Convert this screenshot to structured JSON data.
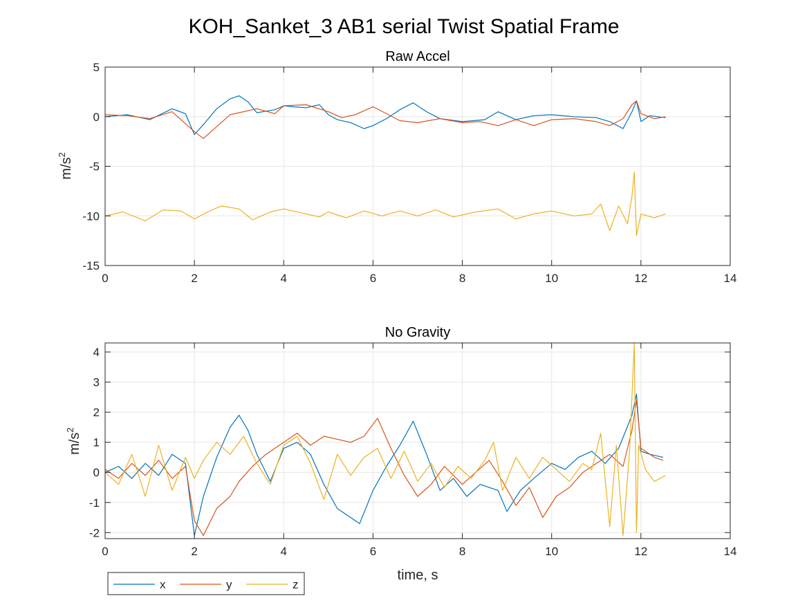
{
  "figure": {
    "title": "KOH_Sanket_3 AB1 serial Twist Spatial Frame",
    "legend": {
      "placement": "bottom-left, horizontal",
      "entries": [
        "x",
        "y",
        "z"
      ]
    }
  },
  "colors": {
    "x": "#0072BD",
    "y": "#D95319",
    "z": "#EDB120",
    "grid": "#e6e6e6",
    "axis": "#262626"
  },
  "chart_data": [
    {
      "type": "line",
      "title": "Raw Accel",
      "xlabel": "",
      "ylabel": "m/s",
      "ylabel_sup": "2",
      "xlim": [
        0,
        14
      ],
      "ylim": [
        -15,
        5
      ],
      "xticks": [
        0,
        2,
        4,
        6,
        8,
        10,
        12,
        14
      ],
      "yticks": [
        -15,
        -10,
        -5,
        0,
        5
      ],
      "grid": true,
      "series": [
        {
          "name": "x",
          "x": [
            0,
            0.5,
            1,
            1.5,
            1.8,
            2.0,
            2.2,
            2.5,
            2.8,
            3.0,
            3.2,
            3.4,
            3.8,
            4.0,
            4.2,
            4.5,
            4.8,
            5.0,
            5.2,
            5.5,
            5.8,
            6.0,
            6.3,
            6.6,
            6.9,
            7.2,
            7.5,
            8.0,
            8.5,
            8.8,
            9.2,
            9.6,
            10.0,
            10.5,
            11.0,
            11.3,
            11.6,
            11.8,
            11.9,
            12.0,
            12.2,
            12.55
          ],
          "y": [
            0,
            0.2,
            -0.3,
            0.8,
            0.3,
            -1.8,
            -0.8,
            0.8,
            1.8,
            2.1,
            1.5,
            0.4,
            0.7,
            1.1,
            1.0,
            0.9,
            1.2,
            0.2,
            -0.3,
            -0.6,
            -1.2,
            -0.9,
            -0.2,
            0.7,
            1.4,
            0.5,
            -0.2,
            -0.5,
            -0.3,
            0.5,
            -0.3,
            0.1,
            0.2,
            0,
            -0.1,
            -0.5,
            -1.2,
            0.5,
            1.6,
            -0.5,
            0.1,
            -0.1
          ]
        },
        {
          "name": "y",
          "x": [
            0,
            0.5,
            1,
            1.5,
            2.0,
            2.2,
            2.5,
            2.8,
            3.0,
            3.4,
            3.8,
            4.0,
            4.5,
            5.0,
            5.3,
            5.6,
            6.0,
            6.3,
            6.6,
            7.0,
            7.5,
            8.0,
            8.4,
            8.8,
            9.2,
            9.6,
            10.0,
            10.5,
            11.0,
            11.3,
            11.6,
            11.8,
            11.9,
            12.0,
            12.3,
            12.55
          ],
          "y": [
            0.2,
            0.1,
            -0.2,
            0.5,
            -1.5,
            -2.2,
            -1.0,
            0.2,
            0.4,
            0.8,
            0.3,
            1.1,
            1.2,
            0.5,
            -0.1,
            0.2,
            1.0,
            0.3,
            -0.4,
            -0.6,
            -0.2,
            -0.6,
            -0.5,
            -0.9,
            -0.3,
            -0.9,
            -0.3,
            -0.2,
            -0.5,
            -0.9,
            -0.2,
            1.2,
            1.6,
            0.3,
            -0.2,
            0
          ]
        },
        {
          "name": "z",
          "x": [
            0,
            0.4,
            0.9,
            1.3,
            1.7,
            2.0,
            2.3,
            2.6,
            3.0,
            3.3,
            3.7,
            4.0,
            4.4,
            4.8,
            5.0,
            5.4,
            5.8,
            6.2,
            6.6,
            7.0,
            7.4,
            7.8,
            8.3,
            8.8,
            9.2,
            9.6,
            10.0,
            10.5,
            10.9,
            11.1,
            11.3,
            11.5,
            11.7,
            11.8,
            11.85,
            11.9,
            12.0,
            12.3,
            12.55
          ],
          "y": [
            -10,
            -9.6,
            -10.5,
            -9.4,
            -9.5,
            -10.3,
            -9.6,
            -9.0,
            -9.3,
            -10.4,
            -9.6,
            -9.3,
            -9.7,
            -10.1,
            -9.6,
            -10.2,
            -9.5,
            -10.0,
            -9.5,
            -10.0,
            -9.4,
            -10.1,
            -9.6,
            -9.3,
            -10.3,
            -9.8,
            -9.5,
            -10.0,
            -9.8,
            -8.8,
            -11.5,
            -9.0,
            -10.8,
            -8.0,
            -5.6,
            -12.0,
            -9.8,
            -10.2,
            -9.8
          ]
        }
      ]
    },
    {
      "type": "line",
      "title": "No Gravity",
      "xlabel": "time, s",
      "ylabel": "m/s",
      "ylabel_sup": "2",
      "xlim": [
        0,
        14
      ],
      "ylim": [
        -2.2,
        4.3
      ],
      "xticks": [
        0,
        2,
        4,
        6,
        8,
        10,
        12,
        14
      ],
      "yticks": [
        -2,
        -1,
        0,
        1,
        2,
        3,
        4
      ],
      "grid": true,
      "series": [
        {
          "name": "x",
          "x": [
            0,
            0.3,
            0.6,
            0.9,
            1.2,
            1.5,
            1.8,
            2.0,
            2.2,
            2.5,
            2.8,
            3.0,
            3.2,
            3.4,
            3.7,
            4.0,
            4.3,
            4.6,
            4.9,
            5.2,
            5.5,
            5.7,
            6.0,
            6.3,
            6.6,
            6.9,
            7.2,
            7.5,
            7.8,
            8.1,
            8.4,
            8.8,
            9.0,
            9.3,
            9.6,
            10.0,
            10.3,
            10.6,
            10.9,
            11.2,
            11.5,
            11.8,
            11.9,
            12.0,
            12.2,
            12.5
          ],
          "y": [
            0,
            0.2,
            -0.2,
            0.3,
            -0.1,
            0.6,
            0.3,
            -2.1,
            -0.8,
            0.5,
            1.5,
            1.9,
            1.4,
            0.6,
            -0.3,
            0.8,
            1.0,
            0.6,
            -0.4,
            -1.2,
            -1.5,
            -1.7,
            -0.6,
            0.2,
            0.9,
            1.7,
            0.6,
            -0.6,
            -0.2,
            -0.8,
            -0.4,
            -0.6,
            -1.3,
            -0.6,
            -0.2,
            0.3,
            0.1,
            0.5,
            0.7,
            0.3,
            0.8,
            1.9,
            2.6,
            0.7,
            0.6,
            0.5
          ]
        },
        {
          "name": "y",
          "x": [
            0,
            0.3,
            0.6,
            0.9,
            1.2,
            1.5,
            1.8,
            2.0,
            2.2,
            2.5,
            2.8,
            3.0,
            3.3,
            3.6,
            4.0,
            4.3,
            4.6,
            4.9,
            5.2,
            5.5,
            5.8,
            6.1,
            6.4,
            6.7,
            7.0,
            7.3,
            7.6,
            8.0,
            8.3,
            8.6,
            8.9,
            9.2,
            9.5,
            9.8,
            10.1,
            10.4,
            10.7,
            11.0,
            11.3,
            11.6,
            11.8,
            11.9,
            12.0,
            12.3,
            12.5
          ],
          "y": [
            0.1,
            -0.2,
            0.3,
            -0.1,
            0.4,
            -0.2,
            0.2,
            -1.6,
            -2.1,
            -1.2,
            -0.8,
            -0.3,
            0.2,
            0.6,
            1.0,
            1.3,
            0.9,
            1.2,
            1.1,
            1.0,
            1.2,
            1.8,
            0.8,
            -0.1,
            -0.8,
            -0.4,
            0.2,
            -0.4,
            0.0,
            0.4,
            -0.3,
            -1.1,
            -0.5,
            -1.5,
            -0.8,
            -0.5,
            0.0,
            0.3,
            0.6,
            0.2,
            1.4,
            2.4,
            0.8,
            0.5,
            0.4
          ]
        },
        {
          "name": "z",
          "x": [
            0,
            0.3,
            0.6,
            0.9,
            1.2,
            1.5,
            1.8,
            2.0,
            2.2,
            2.5,
            2.8,
            3.1,
            3.4,
            3.7,
            4.0,
            4.3,
            4.6,
            4.9,
            5.2,
            5.5,
            5.8,
            6.1,
            6.4,
            6.7,
            7.0,
            7.3,
            7.6,
            7.9,
            8.2,
            8.5,
            8.7,
            8.9,
            9.2,
            9.5,
            9.8,
            10.1,
            10.4,
            10.7,
            10.9,
            11.1,
            11.3,
            11.45,
            11.6,
            11.75,
            11.85,
            11.9,
            11.95,
            12.1,
            12.3,
            12.55
          ],
          "y": [
            0,
            -0.4,
            0.6,
            -0.8,
            0.9,
            -0.6,
            0.5,
            -0.2,
            0.4,
            1.0,
            0.6,
            1.2,
            0.3,
            -0.4,
            0.9,
            1.2,
            0.3,
            -0.9,
            0.6,
            -0.1,
            0.5,
            0.8,
            -0.2,
            0.7,
            -0.3,
            0.3,
            -0.5,
            0.2,
            -0.2,
            0.4,
            1.0,
            -0.6,
            0.5,
            -0.2,
            0.5,
            0.1,
            -0.3,
            0.3,
            0.1,
            1.3,
            -1.8,
            0.9,
            -2.1,
            0.8,
            4.3,
            -2.0,
            0.9,
            0.1,
            -0.3,
            -0.1
          ]
        }
      ]
    }
  ]
}
